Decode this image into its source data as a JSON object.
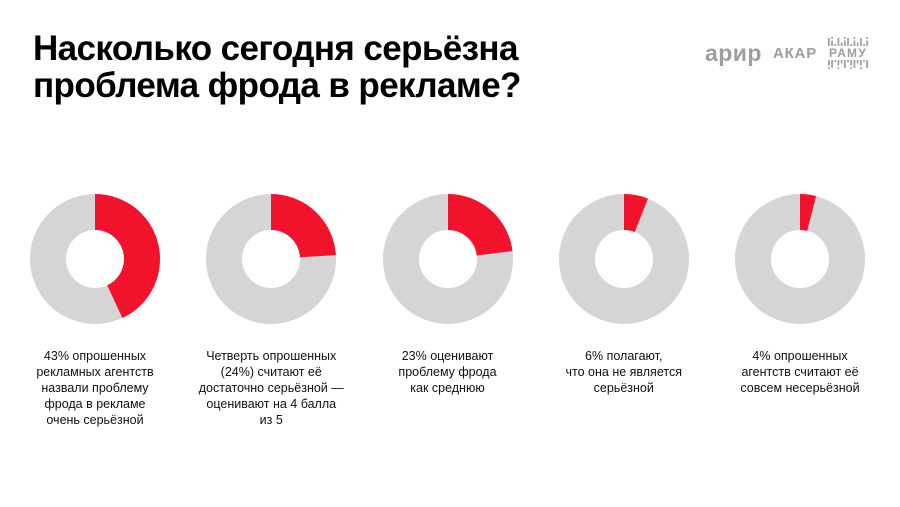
{
  "header": {
    "title_lines": [
      "Насколько сегодня серьёзна",
      "проблема фрода в рекламе?"
    ],
    "logos": {
      "arir": "арир",
      "akar": "АКАР",
      "ramu": "РАМУ"
    }
  },
  "colors": {
    "slice_red": "#F3122B",
    "remainder_gray": "#D5D5D5",
    "logo_gray": "#9E9E9E",
    "title_black": "#000000"
  },
  "chart_data": {
    "type": "pie",
    "subtype": "donut",
    "title": "Насколько сегодня серьёзна проблема фрода в рекламе?",
    "start_angle_deg": 0,
    "direction": "clockwise",
    "slice_color": "#F3122B",
    "remainder_color": "#D5D5D5",
    "units": "percent of surveyed ad agencies",
    "series": [
      {
        "value_pct": 43,
        "caption_lines": [
          "43% опрошенных",
          "рекламных агентств",
          "назвали проблему",
          "фрода в рекламе",
          "очень серьёзной"
        ]
      },
      {
        "value_pct": 24,
        "caption_lines": [
          "Четверть опрошенных",
          "(24%) считают её",
          "достаточно серьёзной —",
          "оценивают на 4 балла",
          "из 5"
        ]
      },
      {
        "value_pct": 23,
        "caption_lines": [
          "23% оценивают",
          "проблему фрода",
          "как среднюю"
        ]
      },
      {
        "value_pct": 6,
        "caption_lines": [
          "6% полагают,",
          "что она не является",
          "серьёзной"
        ]
      },
      {
        "value_pct": 4,
        "caption_lines": [
          "4% опрошенных",
          "агентств считают её",
          "совсем несерьёзной"
        ]
      }
    ]
  }
}
